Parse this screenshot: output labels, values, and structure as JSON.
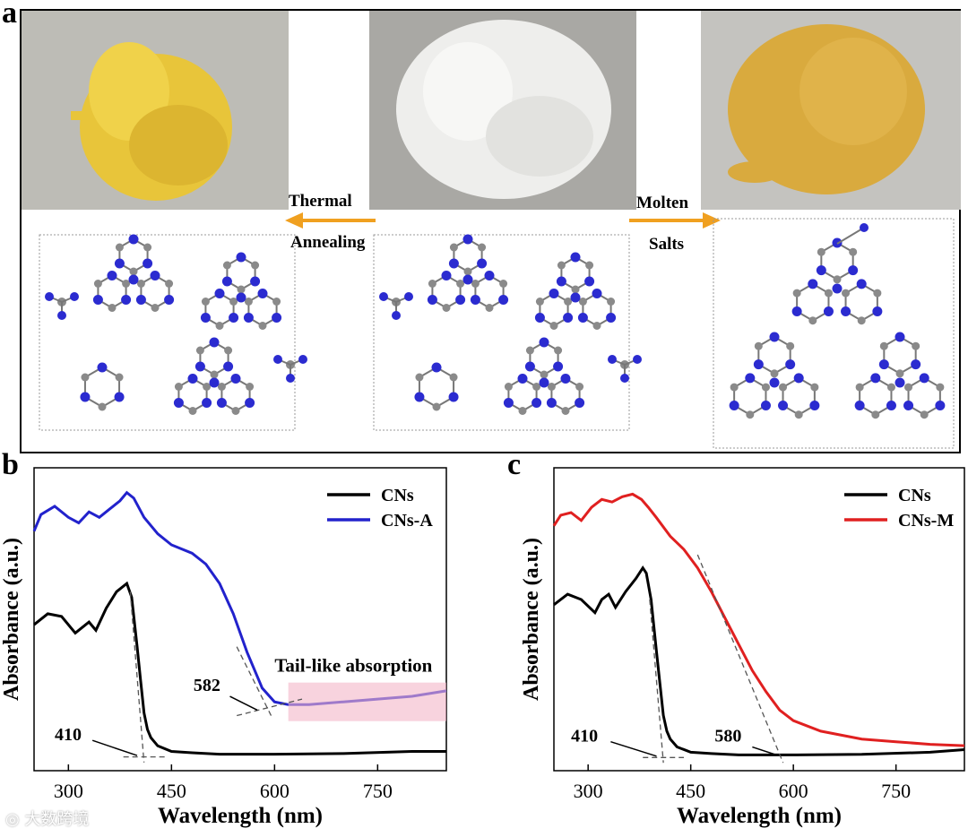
{
  "panel_a": {
    "letter": "a",
    "arrow_left_line1": "Thermal",
    "arrow_left_line2": "Annealing",
    "arrow_right_line1": "Molten",
    "arrow_right_line2": "Salts",
    "colors": {
      "arrow": "#f0a020",
      "nitrogen": "#2b2bd0",
      "carbon": "#8a8a8a",
      "hydrogen": "#f2d6d6"
    }
  },
  "chart_data": [
    {
      "type": "line",
      "panel": "b",
      "xlabel": "Wavelength (nm)",
      "ylabel": "Absorbance (a.u.)",
      "xlim": [
        250,
        850
      ],
      "xticks": [
        300,
        450,
        600,
        750
      ],
      "grid": false,
      "legend_position": "top-right",
      "series": [
        {
          "name": "CNs",
          "color": "#000000",
          "x": [
            250,
            270,
            290,
            310,
            320,
            330,
            340,
            355,
            370,
            385,
            392,
            400,
            405,
            410,
            415,
            420,
            430,
            450,
            480,
            520,
            600,
            700,
            800,
            850
          ],
          "y": [
            0.48,
            0.52,
            0.51,
            0.45,
            0.47,
            0.49,
            0.46,
            0.54,
            0.6,
            0.63,
            0.58,
            0.4,
            0.28,
            0.16,
            0.1,
            0.07,
            0.04,
            0.02,
            0.015,
            0.01,
            0.01,
            0.012,
            0.02,
            0.02
          ]
        },
        {
          "name": "CNs-A",
          "color": "#2222cc",
          "x": [
            250,
            260,
            280,
            300,
            315,
            330,
            345,
            360,
            375,
            385,
            395,
            410,
            430,
            450,
            480,
            500,
            520,
            540,
            560,
            582,
            600,
            620,
            650,
            700,
            750,
            800,
            850
          ],
          "y": [
            0.82,
            0.88,
            0.91,
            0.87,
            0.85,
            0.89,
            0.87,
            0.9,
            0.93,
            0.96,
            0.94,
            0.87,
            0.81,
            0.77,
            0.74,
            0.7,
            0.63,
            0.52,
            0.38,
            0.25,
            0.2,
            0.19,
            0.19,
            0.2,
            0.21,
            0.22,
            0.24
          ]
        }
      ],
      "annotations": [
        "410",
        "582",
        "Tail-like absorption"
      ]
    },
    {
      "type": "line",
      "panel": "c",
      "xlabel": "Wavelength (nm)",
      "ylabel": "Absorbance (a.u.)",
      "xlim": [
        250,
        850
      ],
      "xticks": [
        300,
        450,
        600,
        750
      ],
      "grid": false,
      "legend_position": "top-right",
      "series": [
        {
          "name": "CNs",
          "color": "#000000",
          "x": [
            250,
            270,
            290,
            310,
            320,
            330,
            340,
            355,
            370,
            380,
            385,
            392,
            400,
            405,
            410,
            415,
            420,
            430,
            450,
            480,
            520,
            600,
            700,
            800,
            850
          ],
          "y": [
            0.58,
            0.62,
            0.6,
            0.55,
            0.6,
            0.62,
            0.57,
            0.63,
            0.68,
            0.72,
            0.7,
            0.6,
            0.4,
            0.28,
            0.16,
            0.1,
            0.07,
            0.04,
            0.02,
            0.015,
            0.01,
            0.01,
            0.012,
            0.02,
            0.03
          ]
        },
        {
          "name": "CNs-M",
          "color": "#e02020",
          "x": [
            250,
            260,
            275,
            290,
            305,
            320,
            335,
            350,
            365,
            378,
            388,
            400,
            420,
            440,
            460,
            480,
            500,
            520,
            540,
            560,
            580,
            600,
            640,
            700,
            750,
            800,
            850
          ],
          "y": [
            0.88,
            0.92,
            0.93,
            0.9,
            0.95,
            0.98,
            0.97,
            0.99,
            1.0,
            0.98,
            0.95,
            0.91,
            0.84,
            0.79,
            0.72,
            0.63,
            0.53,
            0.43,
            0.33,
            0.25,
            0.18,
            0.14,
            0.1,
            0.07,
            0.06,
            0.05,
            0.045
          ]
        }
      ],
      "annotations": [
        "410",
        "580"
      ]
    }
  ],
  "panel_b": {
    "letter": "b"
  },
  "panel_c": {
    "letter": "c"
  }
}
